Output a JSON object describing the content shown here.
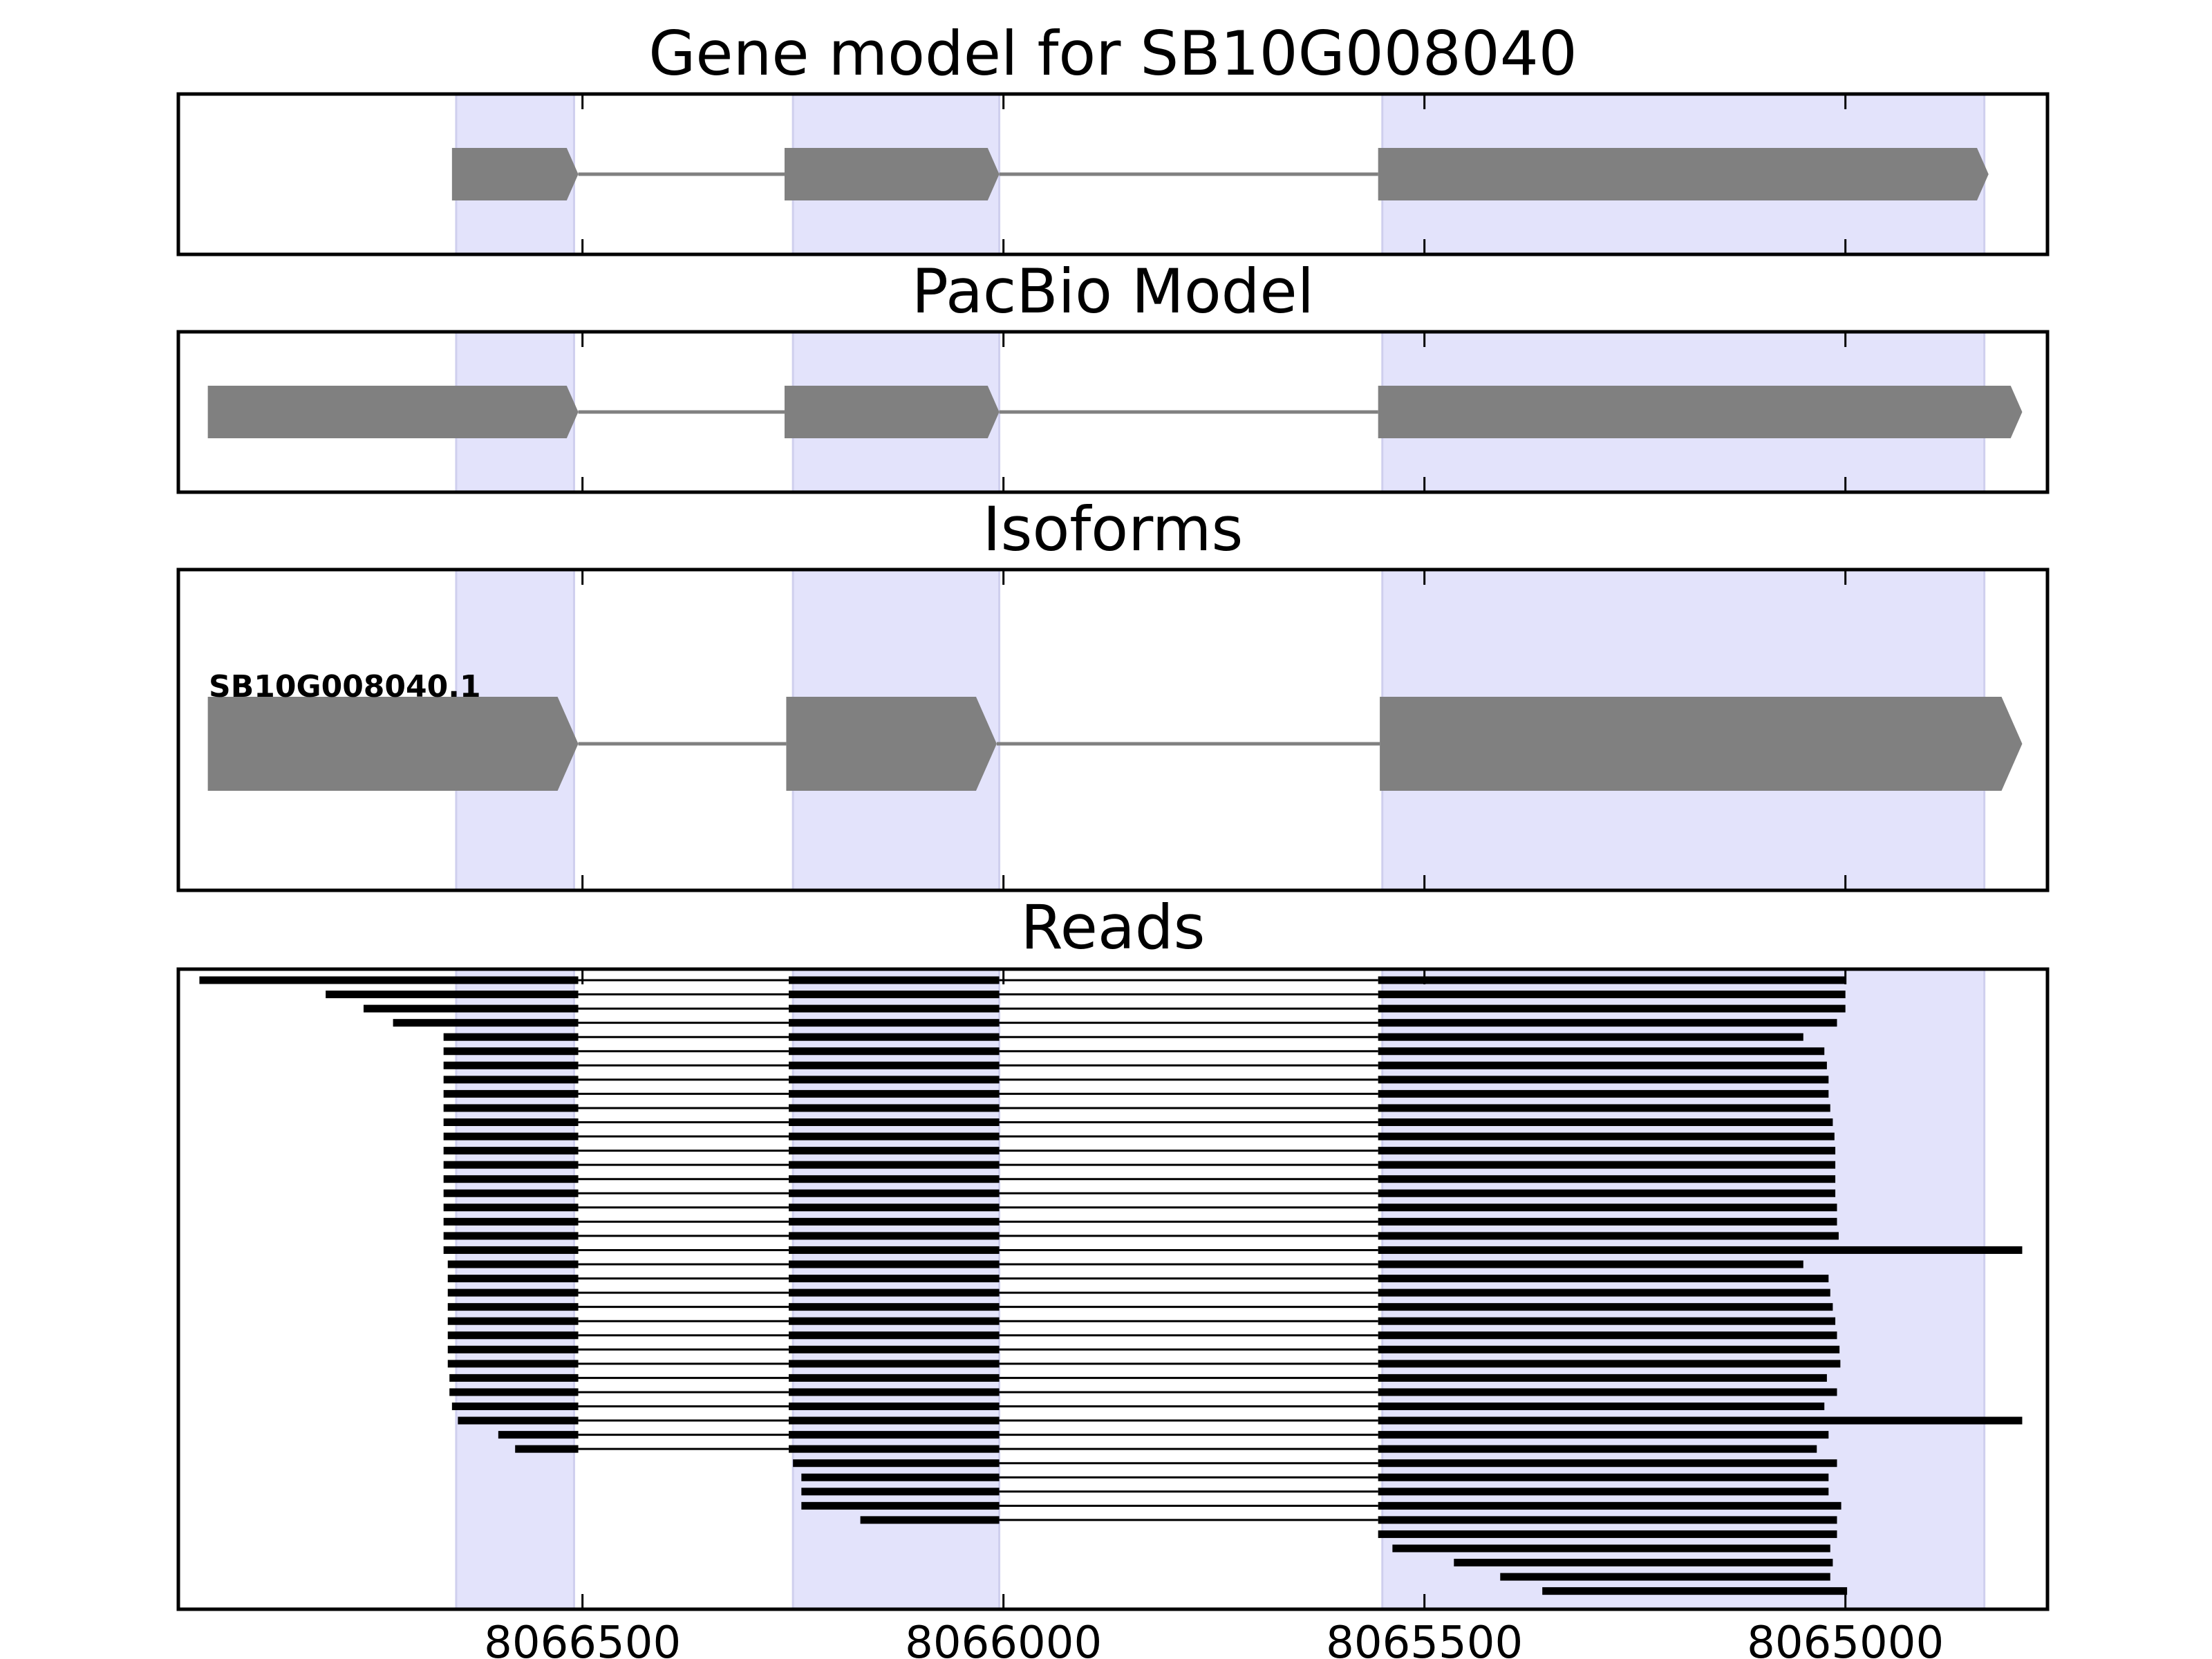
{
  "chart_data": {
    "type": "gene-track",
    "axis": {
      "reversed": true,
      "xlim": [
        8066980,
        8064760
      ],
      "ticks": [
        8066500,
        8066000,
        8065500,
        8065000
      ]
    },
    "highlight_color": "#e3e3fb",
    "feature_color": "#808080",
    "read_color": "#000000",
    "highlights": [
      [
        8066650,
        8066510
      ],
      [
        8066250,
        8066005
      ],
      [
        8065550,
        8064835
      ]
    ],
    "panels": [
      {
        "id": "gene-model",
        "title": "Gene model for SB10G008040",
        "exons": [
          [
            8066655,
            8066505
          ],
          [
            8066260,
            8066005
          ],
          [
            8065555,
            8064830
          ]
        ]
      },
      {
        "id": "pacbio-model",
        "title": "PacBio Model",
        "exons": [
          [
            8066945,
            8066505
          ],
          [
            8066260,
            8066005
          ],
          [
            8065555,
            8064790
          ]
        ]
      },
      {
        "id": "isoforms",
        "title": "Isoforms",
        "isoform_label": "SB10G008040.1",
        "exons": [
          [
            8066945,
            8066505
          ],
          [
            8066258,
            8066008
          ],
          [
            8065553,
            8064790
          ]
        ]
      },
      {
        "id": "reads",
        "title": "Reads",
        "reads": [
          [
            8066955,
            8065000
          ],
          [
            8066805,
            8065000
          ],
          [
            8066760,
            8065000
          ],
          [
            8066725,
            8065010
          ],
          [
            8066665,
            8065050
          ],
          [
            8066665,
            8065025
          ],
          [
            8066665,
            8065022
          ],
          [
            8066665,
            8065020
          ],
          [
            8066665,
            8065020
          ],
          [
            8066665,
            8065018
          ],
          [
            8066665,
            8065015
          ],
          [
            8066665,
            8065013
          ],
          [
            8066665,
            8065012
          ],
          [
            8066665,
            8065012
          ],
          [
            8066665,
            8065012
          ],
          [
            8066665,
            8065012
          ],
          [
            8066665,
            8065010
          ],
          [
            8066665,
            8065010
          ],
          [
            8066665,
            8065008
          ],
          [
            8066665,
            8064790
          ],
          [
            8066660,
            8065050
          ],
          [
            8066660,
            8065020
          ],
          [
            8066660,
            8065018
          ],
          [
            8066660,
            8065015
          ],
          [
            8066660,
            8065012
          ],
          [
            8066660,
            8065010
          ],
          [
            8066660,
            8065007
          ],
          [
            8066660,
            8065006
          ],
          [
            8066658,
            8065022
          ],
          [
            8066658,
            8065010
          ],
          [
            8066655,
            8065025
          ],
          [
            8066648,
            8064790
          ],
          [
            8066600,
            8065020
          ],
          [
            8066580,
            8065034
          ],
          [
            8066250,
            8065010
          ],
          [
            8066240,
            8065020
          ],
          [
            8066240,
            8065020
          ],
          [
            8066240,
            8065005
          ],
          [
            8066170,
            8065010
          ],
          [
            8065555,
            8065010
          ],
          [
            8065538,
            8065018
          ],
          [
            8065465,
            8065015
          ],
          [
            8065410,
            8065018
          ],
          [
            8065360,
            8064998
          ]
        ]
      }
    ]
  }
}
